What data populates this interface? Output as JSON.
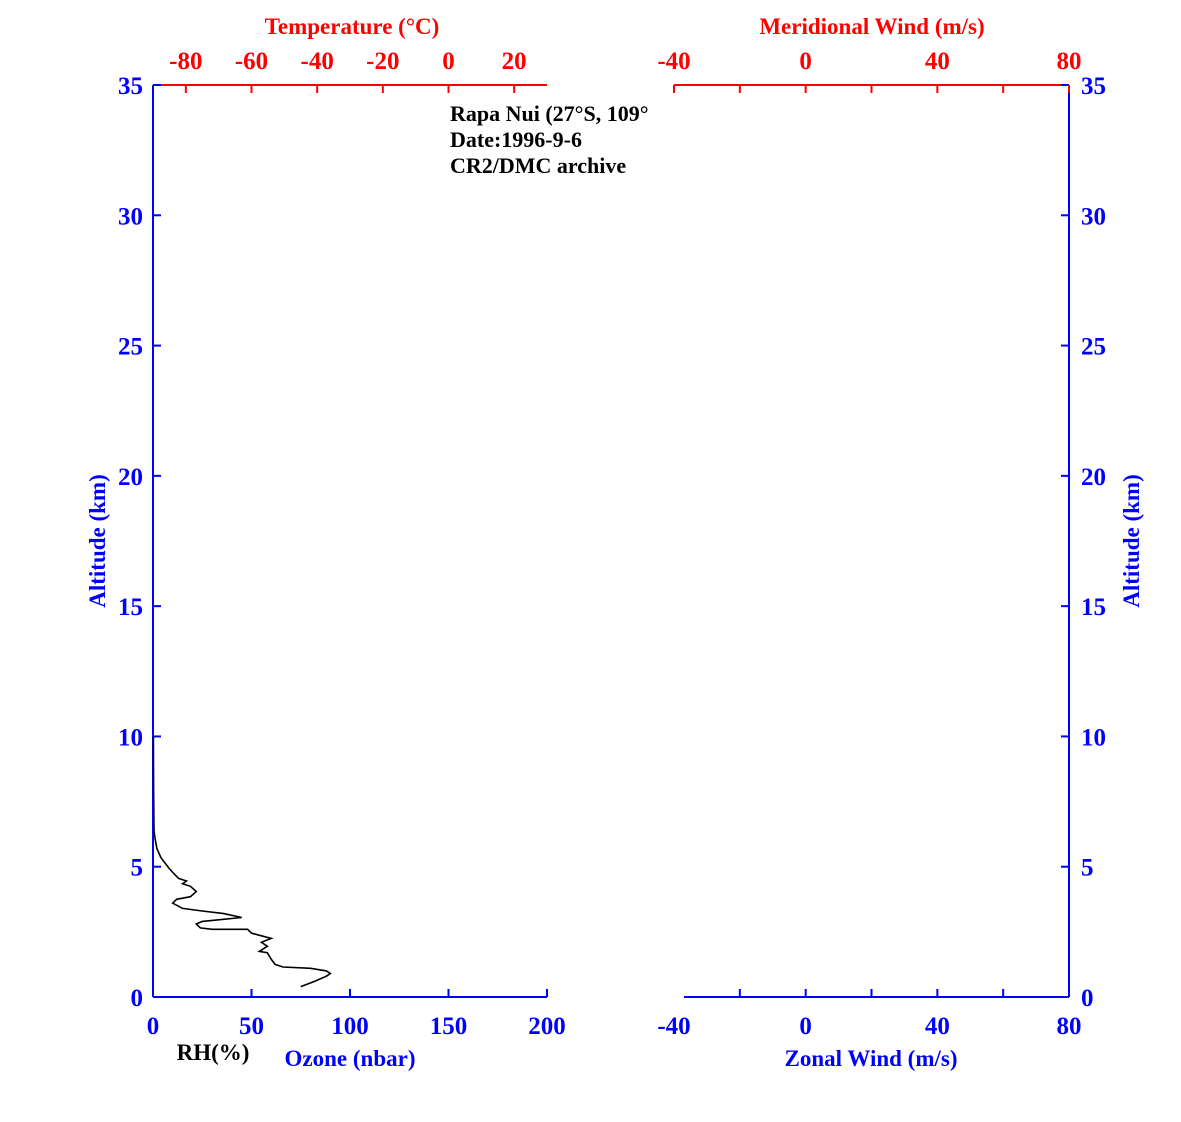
{
  "colors": {
    "axis_blue": "#0000ff",
    "axis_red": "#ff0000",
    "trace": "#000000"
  },
  "annotation": {
    "station": "Rapa Nui (27°S, 109°",
    "date": "Date:1996-9-6",
    "archive": "CR2/DMC archive"
  },
  "chart_data": [
    {
      "type": "line",
      "panel": "left",
      "xlabel": "Ozone (nbar)",
      "xlabel_secondary": "RH(%)",
      "x_top_label": "Temperature (°C)",
      "ylabel": "Altitude (km)",
      "xlim": [
        0,
        200
      ],
      "ylim": [
        0,
        35
      ],
      "x_top_lim": [
        -90,
        30
      ],
      "x_ticks": [
        0,
        50,
        100,
        150,
        200
      ],
      "x_top_ticks": [
        -80,
        -60,
        -40,
        -20,
        0,
        20
      ],
      "y_ticks": [
        0,
        5,
        10,
        15,
        20,
        25,
        30,
        35
      ],
      "grid": false,
      "series": [
        {
          "axis": "bottom",
          "color": "#000000",
          "points": [
            [
              75,
              0.4
            ],
            [
              82,
              0.6
            ],
            [
              88,
              0.8
            ],
            [
              90,
              0.9
            ],
            [
              88,
              1.0
            ],
            [
              80,
              1.1
            ],
            [
              66,
              1.15
            ],
            [
              62,
              1.25
            ],
            [
              60,
              1.45
            ],
            [
              58,
              1.7
            ],
            [
              54,
              1.75
            ],
            [
              58,
              1.95
            ],
            [
              55,
              2.1
            ],
            [
              60,
              2.25
            ],
            [
              55,
              2.35
            ],
            [
              50,
              2.45
            ],
            [
              48,
              2.6
            ],
            [
              30,
              2.6
            ],
            [
              24,
              2.65
            ],
            [
              22,
              2.8
            ],
            [
              25,
              2.9
            ],
            [
              32,
              2.95
            ],
            [
              45,
              3.05
            ],
            [
              36,
              3.2
            ],
            [
              25,
              3.3
            ],
            [
              15,
              3.4
            ],
            [
              10,
              3.6
            ],
            [
              12,
              3.75
            ],
            [
              19,
              3.85
            ],
            [
              22,
              4.05
            ],
            [
              19,
              4.25
            ],
            [
              15,
              4.35
            ],
            [
              17,
              4.45
            ],
            [
              13,
              4.55
            ],
            [
              11,
              4.7
            ],
            [
              8,
              4.95
            ],
            [
              4,
              5.35
            ],
            [
              2,
              5.7
            ],
            [
              1,
              6.1
            ],
            [
              0.5,
              6.4
            ],
            [
              0.3,
              8
            ],
            [
              0.2,
              10
            ]
          ]
        }
      ]
    },
    {
      "type": "line",
      "panel": "right",
      "xlabel": "Zonal Wind (m/s)",
      "x_top_label": "Meridional Wind (m/s)",
      "ylabel": "Altitude (km)",
      "xlim": [
        -40,
        80
      ],
      "ylim": [
        0,
        35
      ],
      "x_ticks": [
        -40,
        0,
        40,
        80
      ],
      "x_top_ticks": [
        -40,
        0,
        40,
        80
      ],
      "y_ticks": [
        0,
        5,
        10,
        15,
        20,
        25,
        30,
        35
      ],
      "grid": false,
      "series": []
    }
  ]
}
